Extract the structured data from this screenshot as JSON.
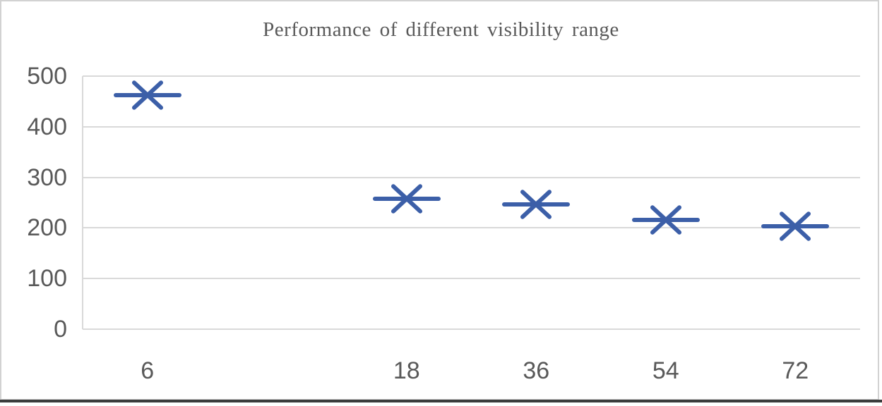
{
  "chart_data": {
    "type": "scatter",
    "title": "Performance of different visibility range",
    "x": [
      "6",
      "18",
      "36",
      "54",
      "72"
    ],
    "values": [
      462,
      258,
      246,
      216,
      204
    ],
    "series_name": "",
    "xlabel": "",
    "ylabel": "",
    "ylim": [
      0,
      500
    ],
    "yticks": [
      0,
      100,
      200,
      300,
      400,
      500
    ],
    "grid": "horizontal",
    "legend_position": "none",
    "marker_style": "x-with-horizontal-dash",
    "slot_indices": [
      0,
      2,
      3,
      4,
      5
    ],
    "total_slots": 6,
    "colors": {
      "marker": "#3c5fa8",
      "gridline": "#d9d9d9",
      "axis_line": "#d9d9d9",
      "axis_text": "#595959",
      "title_text": "#595959",
      "canvas_border": "#d2d2d2",
      "bottom_rule": "#3c3c3c"
    }
  }
}
